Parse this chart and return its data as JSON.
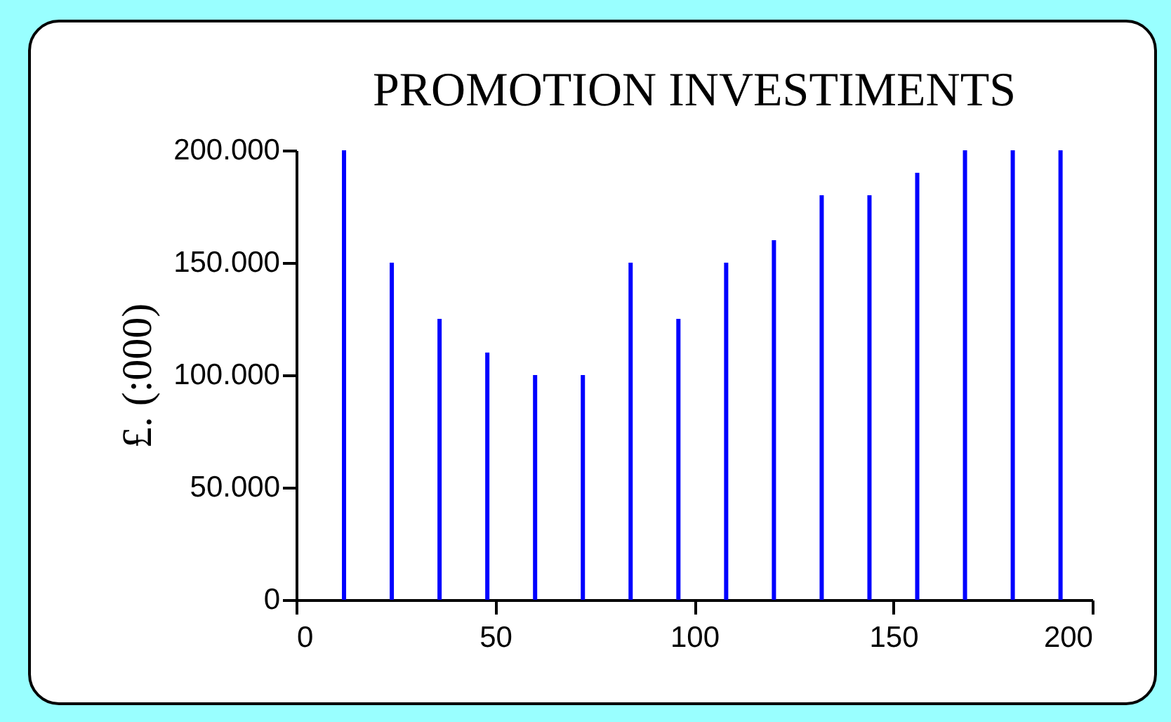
{
  "chart_data": {
    "type": "bar",
    "title": "PROMOTION INVESTIMENTS",
    "ylabel": "£. (:000)",
    "x": [
      12,
      24,
      36,
      48,
      60,
      72,
      84,
      96,
      108,
      120,
      132,
      144,
      156,
      168,
      180,
      192
    ],
    "values": [
      200000,
      150000,
      125000,
      110000,
      100000,
      100000,
      150000,
      125000,
      150000,
      160000,
      180000,
      180000,
      190000,
      200000,
      200000,
      200000
    ],
    "color": "#0000ff",
    "xlim": [
      0,
      200
    ],
    "xticks": [
      0,
      50,
      100,
      150,
      200
    ],
    "ylim": [
      0,
      200000
    ],
    "yticks": [
      0,
      {
        "value": 50000,
        "label": "50.000"
      },
      {
        "value": 100000,
        "label": "100.000"
      },
      {
        "value": 150000,
        "label": "150.000"
      },
      {
        "value": 200000,
        "label": "200.000"
      }
    ]
  }
}
